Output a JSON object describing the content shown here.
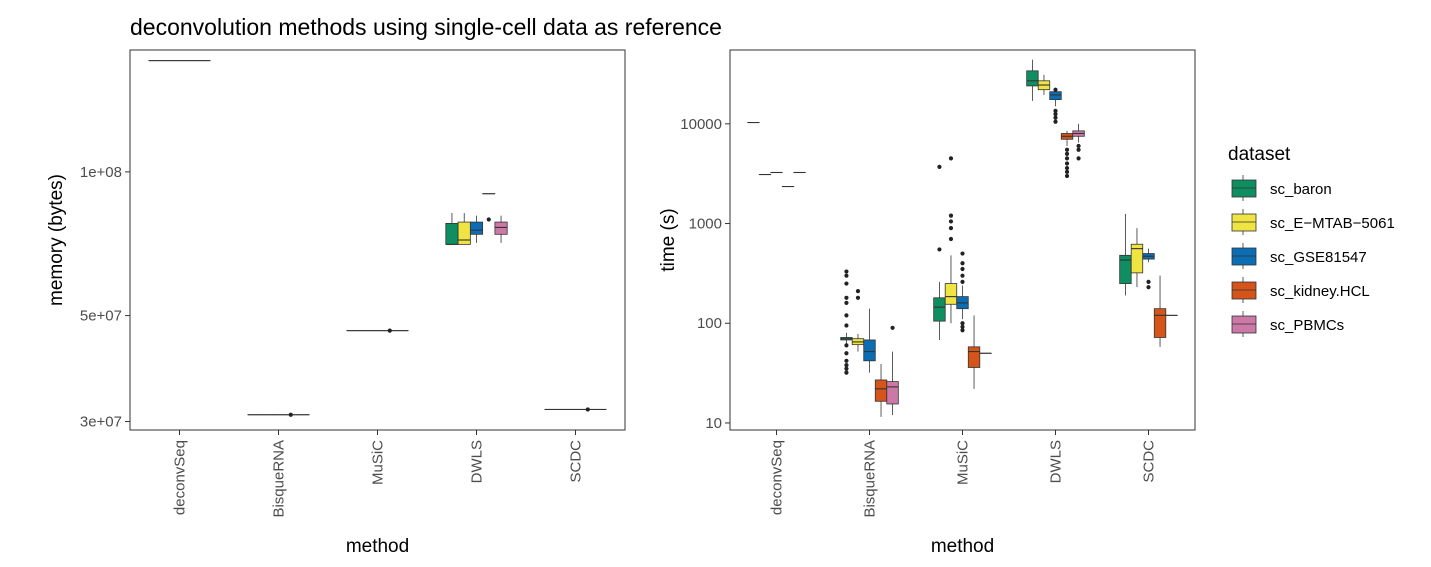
{
  "chart_data": {
    "title": "deconvolution methods using single-cell data as reference",
    "legend": {
      "title": "dataset",
      "position": "right",
      "entries": [
        {
          "name": "sc_baron",
          "color": "#0f8f61"
        },
        {
          "name": "sc_E−MTAB−5061",
          "color": "#f0e442"
        },
        {
          "name": "sc_GSE81547",
          "color": "#0b6db3"
        },
        {
          "name": "sc_kidney.HCL",
          "color": "#d5541a"
        },
        {
          "name": "sc_PBMCs",
          "color": "#cc79a7"
        }
      ]
    },
    "panels": [
      {
        "type": "boxplot",
        "xlabel": "method",
        "ylabel": "memory (bytes)",
        "y_scale": "log",
        "ylim": [
          28800000,
          180000000
        ],
        "categories": [
          "deconvSeq",
          "BisqueRNA",
          "MuSiC",
          "DWLS",
          "SCDC"
        ],
        "yticks": [
          {
            "value": 30000000,
            "label": "3e+07"
          },
          {
            "value": 50000000,
            "label": "5e+07"
          },
          {
            "value": 100000000,
            "label": "1e+08"
          }
        ],
        "series": [
          {
            "name": "sc_baron",
            "boxes": [
              {
                "q1": 171000000,
                "median": 171000000,
                "q3": 171000000,
                "lo": 171000000,
                "hi": 171000000
              },
              {
                "q1": 31000000,
                "median": 31000000,
                "q3": 31000000,
                "lo": 31000000,
                "hi": 31000000
              },
              {
                "q1": 46500000,
                "median": 46500000,
                "q3": 46500000,
                "lo": 46500000,
                "hi": 46500000
              },
              {
                "q1": 70500000,
                "median": 70500000,
                "q3": 78000000,
                "lo": 70500000,
                "hi": 82000000
              },
              {
                "q1": 31800000,
                "median": 31800000,
                "q3": 31800000,
                "lo": 31800000,
                "hi": 31800000
              }
            ],
            "outliers": [
              [],
              [],
              [],
              [],
              []
            ]
          },
          {
            "name": "sc_E−MTAB−5061",
            "boxes": [
              {
                "q1": 171000000,
                "median": 171000000,
                "q3": 171000000,
                "lo": 171000000,
                "hi": 171000000
              },
              {
                "q1": 31000000,
                "median": 31000000,
                "q3": 31000000,
                "lo": 31000000,
                "hi": 31000000
              },
              {
                "q1": 46500000,
                "median": 46500000,
                "q3": 46500000,
                "lo": 46500000,
                "hi": 46500000
              },
              {
                "q1": 70500000,
                "median": 72000000,
                "q3": 78500000,
                "lo": 70500000,
                "hi": 82000000
              },
              {
                "q1": 31800000,
                "median": 31800000,
                "q3": 31800000,
                "lo": 31800000,
                "hi": 31800000
              }
            ],
            "outliers": [
              [],
              [],
              [],
              [],
              []
            ]
          },
          {
            "name": "sc_GSE81547",
            "boxes": [
              {
                "q1": 171000000,
                "median": 171000000,
                "q3": 171000000,
                "lo": 171000000,
                "hi": 171000000
              },
              {
                "q1": 31000000,
                "median": 31000000,
                "q3": 31000000,
                "lo": 31000000,
                "hi": 31000000
              },
              {
                "q1": 46500000,
                "median": 46500000,
                "q3": 46500000,
                "lo": 46500000,
                "hi": 46500000
              },
              {
                "q1": 74000000,
                "median": 75500000,
                "q3": 78500000,
                "lo": 71000000,
                "hi": 81000000
              },
              {
                "q1": 31800000,
                "median": 31800000,
                "q3": 31800000,
                "lo": 31800000,
                "hi": 31800000
              }
            ],
            "outliers": [
              [],
              [],
              [],
              [],
              []
            ]
          },
          {
            "name": "sc_kidney.HCL",
            "boxes": [
              {
                "q1": 171000000,
                "median": 171000000,
                "q3": 171000000,
                "lo": 171000000,
                "hi": 171000000
              },
              {
                "q1": 31000000,
                "median": 31000000,
                "q3": 31000000,
                "lo": 31000000,
                "hi": 31000000
              },
              {
                "q1": 46500000,
                "median": 46500000,
                "q3": 46500000,
                "lo": 46500000,
                "hi": 46500000
              },
              {
                "q1": 90000000,
                "median": 90000000,
                "q3": 90000000,
                "lo": 90000000,
                "hi": 90000000
              },
              {
                "q1": 31800000,
                "median": 31800000,
                "q3": 31800000,
                "lo": 31800000,
                "hi": 31800000
              }
            ],
            "outliers": [
              [],
              [
                31000000
              ],
              [
                46500000
              ],
              [
                79500000
              ],
              [
                31800000
              ]
            ]
          },
          {
            "name": "sc_PBMCs",
            "boxes": [
              {
                "q1": 171000000,
                "median": 171000000,
                "q3": 171000000,
                "lo": 171000000,
                "hi": 171000000
              },
              {
                "q1": 31000000,
                "median": 31000000,
                "q3": 31000000,
                "lo": 31000000,
                "hi": 31000000
              },
              {
                "q1": 46500000,
                "median": 46500000,
                "q3": 46500000,
                "lo": 46500000,
                "hi": 46500000
              },
              {
                "q1": 74000000,
                "median": 76500000,
                "q3": 78500000,
                "lo": 71000000,
                "hi": 81000000
              },
              {
                "q1": 31800000,
                "median": 31800000,
                "q3": 31800000,
                "lo": 31800000,
                "hi": 31800000
              }
            ],
            "outliers": [
              [],
              [],
              [],
              [],
              []
            ]
          }
        ]
      },
      {
        "type": "boxplot",
        "xlabel": "method",
        "ylabel": "time (s)",
        "y_scale": "log",
        "ylim": [
          8.5,
          55000
        ],
        "categories": [
          "deconvSeq",
          "BisqueRNA",
          "MuSiC",
          "DWLS",
          "SCDC"
        ],
        "yticks": [
          {
            "value": 10,
            "label": "10"
          },
          {
            "value": 100,
            "label": "100"
          },
          {
            "value": 1000,
            "label": "1000"
          },
          {
            "value": 10000,
            "label": "10000"
          }
        ],
        "series": [
          {
            "name": "sc_baron",
            "boxes": [
              {
                "q1": 10300,
                "median": 10300,
                "q3": 10300,
                "lo": 10300,
                "hi": 10300
              },
              {
                "q1": 68,
                "median": 70,
                "q3": 72,
                "lo": 60,
                "hi": 80
              },
              {
                "q1": 105,
                "median": 145,
                "q3": 180,
                "lo": 68,
                "hi": 260
              },
              {
                "q1": 24000,
                "median": 27000,
                "q3": 34000,
                "lo": 17000,
                "hi": 44000
              },
              {
                "q1": 250,
                "median": 430,
                "q3": 480,
                "lo": 190,
                "hi": 1250
              }
            ],
            "outliers": [
              [],
              [
                32,
                35,
                38,
                42,
                50,
                60,
                95,
                120,
                160,
                180,
                250,
                300,
                330
              ],
              [
                550,
                3700
              ],
              [],
              []
            ]
          },
          {
            "name": "sc_E−MTAB−5061",
            "boxes": [
              {
                "q1": 3100,
                "median": 3100,
                "q3": 3100,
                "lo": 3100,
                "hi": 3100
              },
              {
                "q1": 61,
                "median": 65,
                "q3": 70,
                "lo": 52,
                "hi": 78
              },
              {
                "q1": 155,
                "median": 185,
                "q3": 250,
                "lo": 100,
                "hi": 480
              },
              {
                "q1": 22000,
                "median": 24500,
                "q3": 27000,
                "lo": 19500,
                "hi": 31000
              },
              {
                "q1": 320,
                "median": 560,
                "q3": 620,
                "lo": 230,
                "hi": 900
              }
            ],
            "outliers": [
              [],
              [
                180,
                210
              ],
              [
                700,
                900,
                1050,
                1200,
                4500
              ],
              [],
              []
            ]
          },
          {
            "name": "sc_GSE81547",
            "boxes": [
              {
                "q1": 3250,
                "median": 3250,
                "q3": 3250,
                "lo": 3250,
                "hi": 3250
              },
              {
                "q1": 42,
                "median": 52,
                "q3": 68,
                "lo": 32,
                "hi": 140
              },
              {
                "q1": 140,
                "median": 160,
                "q3": 185,
                "lo": 110,
                "hi": 240
              },
              {
                "q1": 17500,
                "median": 19500,
                "q3": 21000,
                "lo": 15000,
                "hi": 23000
              },
              {
                "q1": 440,
                "median": 470,
                "q3": 500,
                "lo": 410,
                "hi": 560
              }
            ],
            "outliers": [
              [],
              [],
              [
                85,
                92,
                100,
                260,
                300,
                350,
                400,
                500
              ],
              [
                10500,
                11500,
                12500,
                13500,
                22000
              ],
              [
                230,
                260
              ]
            ]
          },
          {
            "name": "sc_kidney.HCL",
            "boxes": [
              {
                "q1": 2350,
                "median": 2350,
                "q3": 2350,
                "lo": 2350,
                "hi": 2350
              },
              {
                "q1": 16.5,
                "median": 22,
                "q3": 27,
                "lo": 11.5,
                "hi": 39
              },
              {
                "q1": 36,
                "median": 52,
                "q3": 58,
                "lo": 22,
                "hi": 120
              },
              {
                "q1": 7000,
                "median": 7500,
                "q3": 8000,
                "lo": 6000,
                "hi": 8500
              },
              {
                "q1": 72,
                "median": 120,
                "q3": 140,
                "lo": 58,
                "hi": 300
              }
            ],
            "outliers": [
              [],
              [],
              [],
              [
                3000,
                3300,
                3600,
                4000,
                4500,
                5000,
                5500
              ],
              []
            ]
          },
          {
            "name": "sc_PBMCs",
            "boxes": [
              {
                "q1": 3250,
                "median": 3250,
                "q3": 3250,
                "lo": 3250,
                "hi": 3250
              },
              {
                "q1": 15.5,
                "median": 23,
                "q3": 26,
                "lo": 12,
                "hi": 52
              },
              {
                "q1": 50,
                "median": 50,
                "q3": 50,
                "lo": 50,
                "hi": 50
              },
              {
                "q1": 7500,
                "median": 8000,
                "q3": 8500,
                "lo": 6500,
                "hi": 10000
              },
              {
                "q1": 120,
                "median": 120,
                "q3": 120,
                "lo": 120,
                "hi": 120
              }
            ],
            "outliers": [
              [],
              [
                90
              ],
              [],
              [
                4500,
                5500,
                6000
              ],
              []
            ]
          }
        ]
      }
    ]
  }
}
